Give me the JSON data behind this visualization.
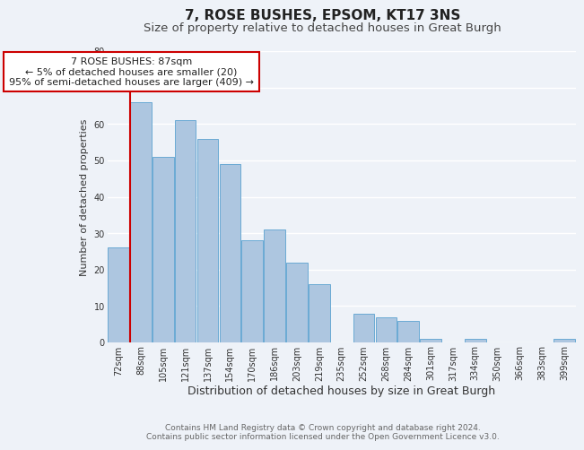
{
  "title": "7, ROSE BUSHES, EPSOM, KT17 3NS",
  "subtitle": "Size of property relative to detached houses in Great Burgh",
  "xlabel": "Distribution of detached houses by size in Great Burgh",
  "ylabel": "Number of detached properties",
  "categories": [
    "72sqm",
    "88sqm",
    "105sqm",
    "121sqm",
    "137sqm",
    "154sqm",
    "170sqm",
    "186sqm",
    "203sqm",
    "219sqm",
    "235sqm",
    "252sqm",
    "268sqm",
    "284sqm",
    "301sqm",
    "317sqm",
    "334sqm",
    "350sqm",
    "366sqm",
    "383sqm",
    "399sqm"
  ],
  "values": [
    26,
    66,
    51,
    61,
    56,
    49,
    28,
    31,
    22,
    16,
    0,
    8,
    7,
    6,
    1,
    0,
    1,
    0,
    0,
    0,
    1
  ],
  "bar_color": "#adc6e0",
  "bar_edge_color": "#6aaad4",
  "highlight_line_index": 1,
  "highlight_color": "#cc0000",
  "annotation_line1": "7 ROSE BUSHES: 87sqm",
  "annotation_line2": "← 5% of detached houses are smaller (20)",
  "annotation_line3": "95% of semi-detached houses are larger (409) →",
  "annotation_box_color": "#ffffff",
  "annotation_box_edge_color": "#cc0000",
  "ylim": [
    0,
    80
  ],
  "yticks": [
    0,
    10,
    20,
    30,
    40,
    50,
    60,
    70,
    80
  ],
  "footer_line1": "Contains HM Land Registry data © Crown copyright and database right 2024.",
  "footer_line2": "Contains public sector information licensed under the Open Government Licence v3.0.",
  "bg_color": "#eef2f8",
  "grid_color": "#ffffff",
  "title_fontsize": 11,
  "subtitle_fontsize": 9.5,
  "xlabel_fontsize": 9,
  "ylabel_fontsize": 8,
  "tick_fontsize": 7,
  "annotation_fontsize": 8,
  "footer_fontsize": 6.5
}
